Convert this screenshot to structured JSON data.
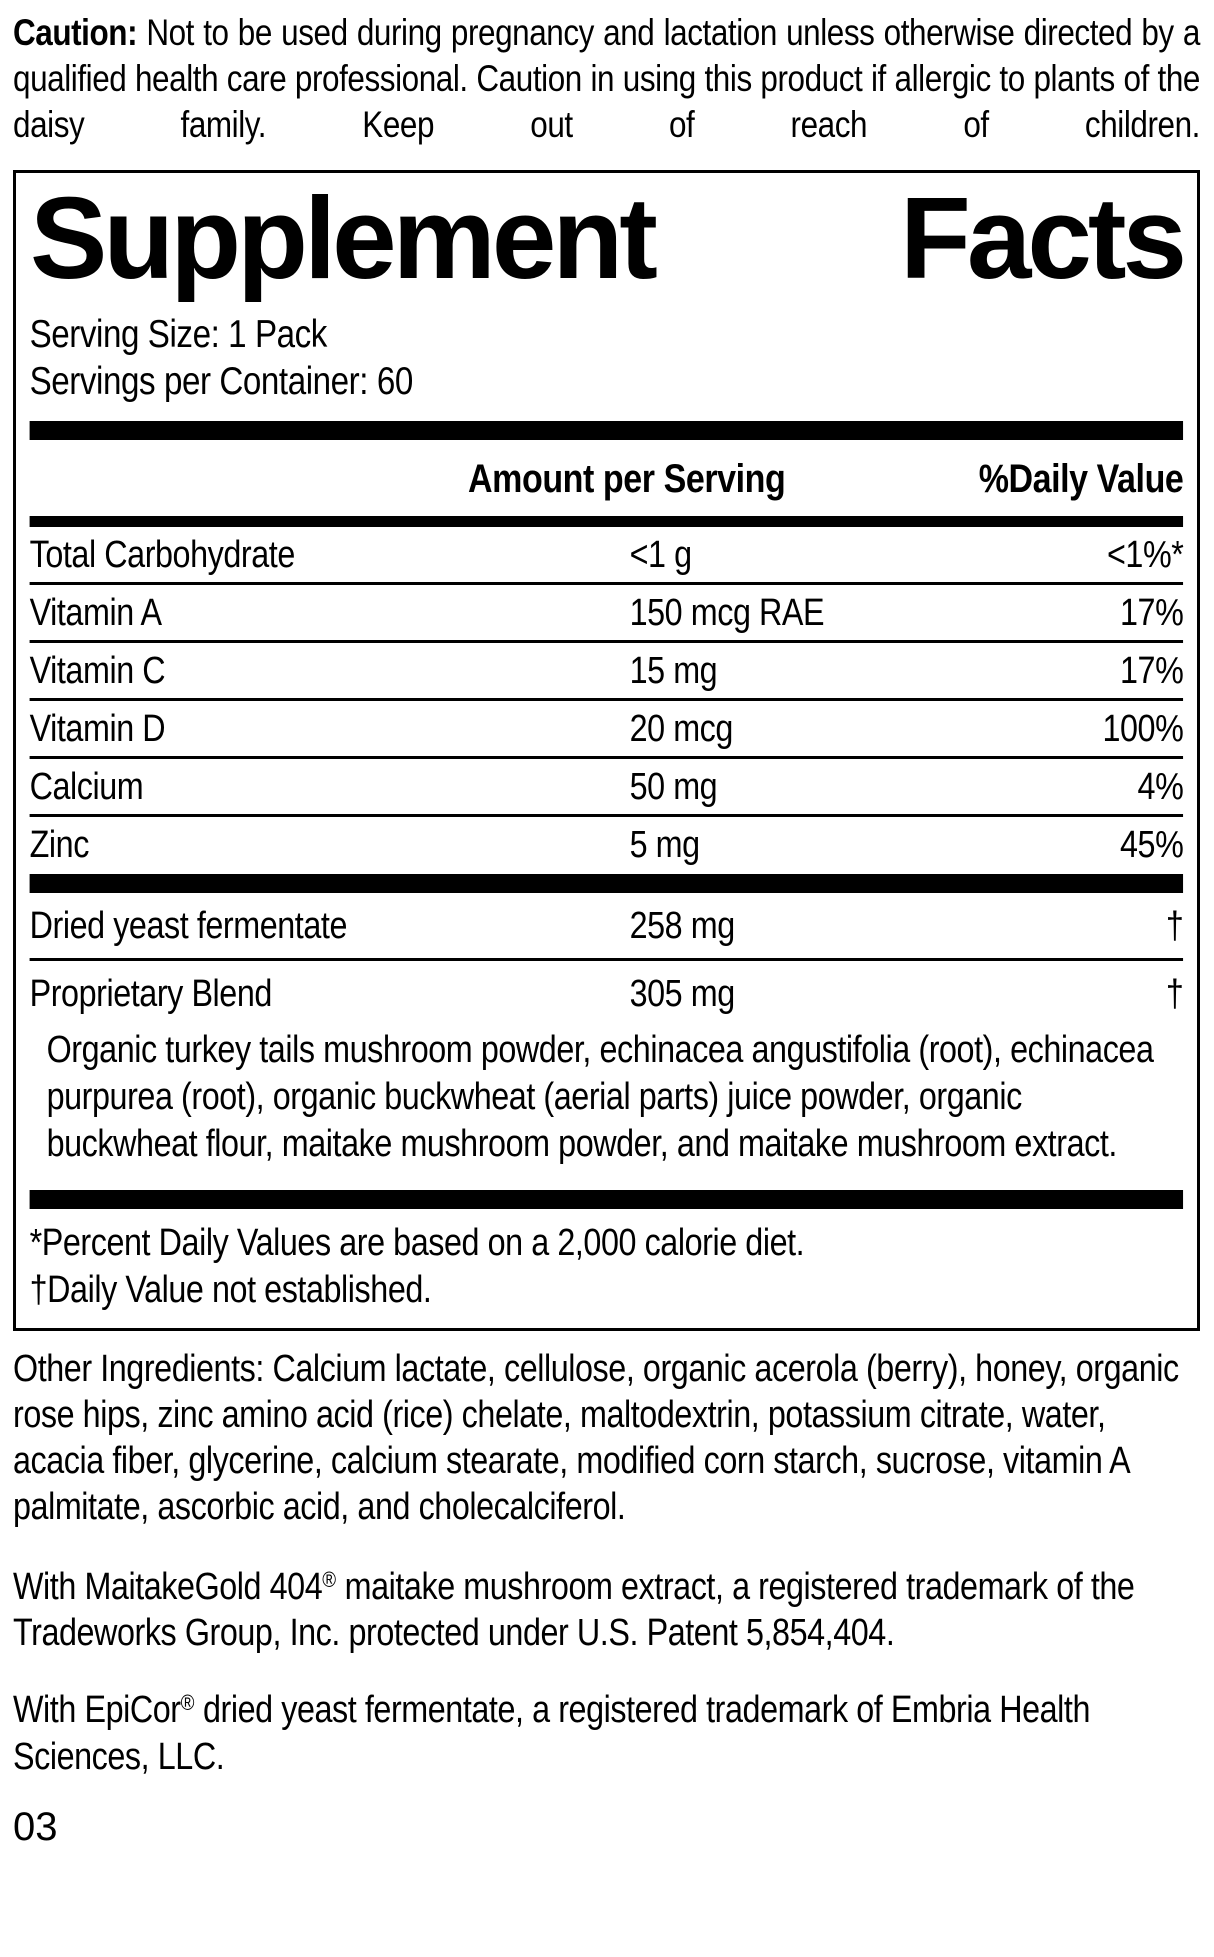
{
  "caution": {
    "label": "Caution:",
    "text": " Not to be used during pregnancy and lactation unless otherwise directed by a qualified health care professional. Caution in using this product if allergic to plants of the daisy family. Keep out of reach of children."
  },
  "panel": {
    "title_word1": "Supplement",
    "title_word2": "Facts",
    "serving_size": "Serving Size: 1 Pack",
    "servings_per_container": "Servings per Container: 60",
    "columns": {
      "amount": "Amount per Serving",
      "daily_value": "%Daily Value"
    },
    "nutrients": [
      {
        "name": "Total Carbohydrate",
        "amount": "<1 g",
        "dv": "<1%*"
      },
      {
        "name": "Vitamin A",
        "amount": "150 mcg RAE",
        "dv": "17%"
      },
      {
        "name": "Vitamin C",
        "amount": "15 mg",
        "dv": "17%"
      },
      {
        "name": "Vitamin D",
        "amount": "20 mcg",
        "dv": "100%"
      },
      {
        "name": "Calcium",
        "amount": "50 mg",
        "dv": "4%"
      },
      {
        "name": "Zinc",
        "amount": "5 mg",
        "dv": "45%"
      }
    ],
    "blend_rows": [
      {
        "name": "Dried yeast fermentate",
        "amount": "258 mg",
        "dv": "†"
      },
      {
        "name": "Proprietary Blend",
        "amount": "305 mg",
        "dv": "†"
      }
    ],
    "blend_description": "Organic turkey tails mushroom powder, echinacea angustifolia (root), echinacea purpurea (root), organic buckwheat (aerial parts) juice powder, organic buckwheat flour, maitake mushroom powder, and maitake mushroom extract.",
    "footnotes": [
      "*Percent Daily Values are based on a 2,000 calorie diet.",
      "†Daily Value not established."
    ]
  },
  "other_ingredients": "Other Ingredients: Calcium lactate, cellulose, organic acerola (berry), honey, organic rose hips, zinc amino acid (rice) chelate, maltodextrin, potassium citrate, water, acacia fiber, glycerine, calcium stearate, modified corn starch, sucrose, vitamin A palmitate, ascorbic acid, and cholecalciferol.",
  "trademark_notes": [
    {
      "before": "With MaitakeGold 404",
      "reg": "®",
      "after": " maitake mushroom extract, a registered trademark of the Tradeworks Group, Inc. protected under U.S. Patent 5,854,404."
    },
    {
      "before": "With EpiCor",
      "reg": "®",
      "after": " dried yeast fermentate, a registered trademark of Embria Health Sciences, LLC."
    }
  ],
  "page_number": "03"
}
